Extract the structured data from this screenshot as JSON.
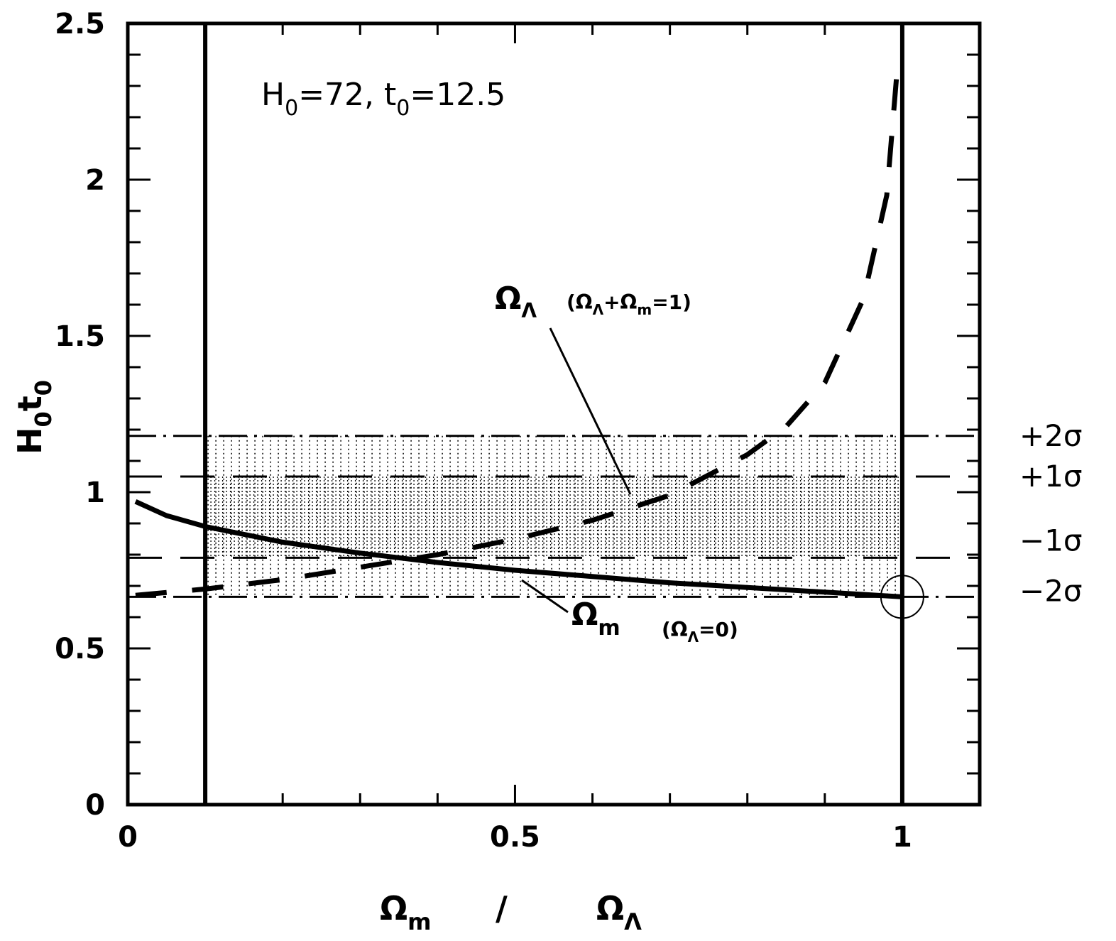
{
  "chart_data": {
    "type": "line",
    "xlim": [
      0,
      1.1
    ],
    "ylim": [
      0,
      2.5
    ],
    "x_ticks": [
      "0",
      "0.5",
      "1"
    ],
    "y_ticks": [
      "0",
      "0.5",
      "1",
      "1.5",
      "2",
      "2.5"
    ],
    "ylabel": {
      "main": "H",
      "sub1": "0",
      "mid": "t",
      "sub2": "0"
    },
    "xlabel": {
      "left": "Ω",
      "left_sub": "m",
      "sep": "/",
      "right": "Ω",
      "right_sub": "Λ"
    },
    "inset_text": {
      "h": "H",
      "h_sub": "0",
      "h_val": "=72,  t",
      "t_sub": "0",
      "t_val": "=12.5"
    },
    "bands": [
      {
        "label": "+2σ",
        "y": 1.18,
        "style": "dash-dot"
      },
      {
        "label": "+1σ",
        "y": 1.05,
        "style": "dashed"
      },
      {
        "label": "−1σ",
        "y": 0.79,
        "style": "dashed"
      },
      {
        "label": "−2σ",
        "y": 0.665,
        "style": "dash-dot"
      }
    ],
    "vertical_lines_x": [
      0.1,
      1.0
    ],
    "series": [
      {
        "label_main": "Ω",
        "label_sub": "m",
        "label_note": "(Ω",
        "label_note_sub": "Λ",
        "label_note_end": "=0)",
        "style": "solid",
        "x": [
          0.01,
          0.05,
          0.1,
          0.2,
          0.3,
          0.4,
          0.5,
          0.6,
          0.7,
          0.8,
          0.9,
          1.0
        ],
        "y": [
          0.97,
          0.925,
          0.89,
          0.84,
          0.805,
          0.775,
          0.75,
          0.73,
          0.71,
          0.695,
          0.68,
          0.665
        ]
      },
      {
        "label_main": "Ω",
        "label_sub": "Λ",
        "label_note": "(Ω",
        "label_note_sub": "Λ",
        "label_note_mid": "+Ω",
        "label_note_sub2": "m",
        "label_note_end": "=1)",
        "style": "long-dashed",
        "x": [
          0.01,
          0.1,
          0.2,
          0.3,
          0.4,
          0.5,
          0.6,
          0.7,
          0.8,
          0.85,
          0.9,
          0.95,
          0.98,
          0.995
        ],
        "y": [
          0.67,
          0.69,
          0.72,
          0.76,
          0.8,
          0.85,
          0.91,
          0.99,
          1.12,
          1.21,
          1.35,
          1.62,
          1.95,
          2.4
        ]
      }
    ],
    "marker": {
      "shape": "circle",
      "x": 1.0,
      "y": 0.665
    }
  }
}
